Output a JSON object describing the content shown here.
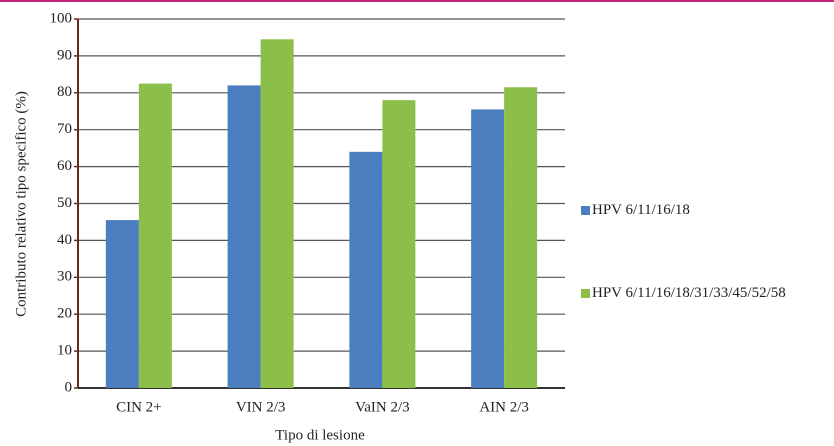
{
  "chart_data": {
    "type": "bar",
    "categories": [
      "CIN 2+",
      "VIN 2/3",
      "VaIN 2/3",
      "AIN 2/3"
    ],
    "series": [
      {
        "name": "HPV 6/11/16/18",
        "color": "#4a7ebf",
        "values": [
          45.5,
          82,
          64,
          75.5
        ]
      },
      {
        "name": "HPV 6/11/16/18/31/33/45/52/58",
        "color": "#8cbf4a",
        "values": [
          82.5,
          94.5,
          78,
          81.5
        ]
      }
    ],
    "ylabel": "Contributo relativo tipo specifico (%)",
    "xlabel": "Tipo di lesione",
    "ylim": [
      0,
      100
    ],
    "yticks": [
      0,
      10,
      20,
      30,
      40,
      50,
      60,
      70,
      80,
      90,
      100
    ],
    "grid": true
  }
}
